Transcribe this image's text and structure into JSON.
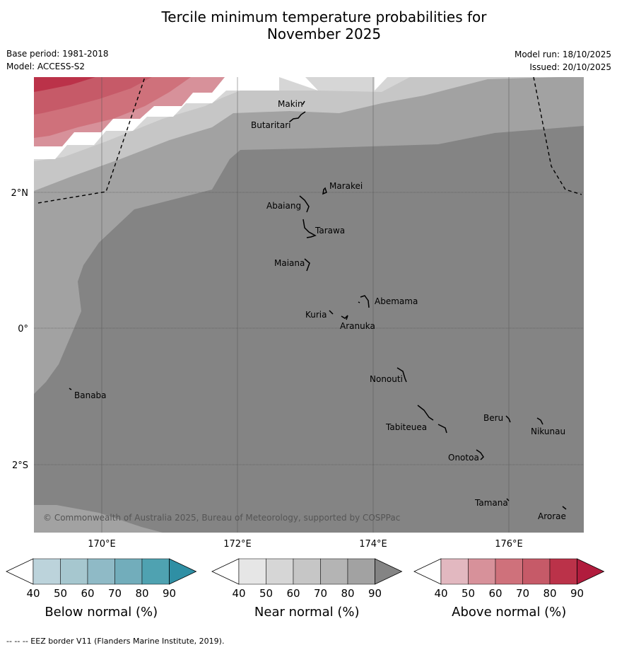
{
  "title_line1": "Tercile minimum temperature probabilities for",
  "title_line2": "November 2025",
  "base_period": "Base period: 1981-2018",
  "model": "Model: ACCESS-S2",
  "model_run": "Model run: 18/10/2025",
  "issued": "Issued: 20/10/2025",
  "copyright": "© Commonwealth of Australia 2025, Bureau of Meteorology, supported by COSPPac",
  "lat_labels": [
    "2°N",
    "0°",
    "2°S"
  ],
  "lon_labels": [
    "170°E",
    "172°E",
    "174°E",
    "176°E"
  ],
  "islands": [
    "Makin",
    "Butaritari",
    "Marakei",
    "Abaiang",
    "Tarawa",
    "Maiana",
    "Abemama",
    "Kuria",
    "Aranuka",
    "Banaba",
    "Nonouti",
    "Tabiteuea",
    "Beru",
    "Nikunau",
    "Onotoa",
    "Tamana",
    "Arorae"
  ],
  "colorbars": [
    {
      "label": "Below normal (%)",
      "ticks": [
        "40",
        "50",
        "60",
        "70",
        "80",
        "90"
      ],
      "colors": [
        "#ffffff",
        "#bcd3db",
        "#a6c7cf",
        "#8fbac6",
        "#72adbb",
        "#4fa2b1",
        "#2f8fa4"
      ]
    },
    {
      "label": "Near normal (%)",
      "ticks": [
        "40",
        "50",
        "60",
        "70",
        "80",
        "90"
      ],
      "colors": [
        "#ffffff",
        "#e6e6e6",
        "#d6d6d6",
        "#c6c6c6",
        "#b4b4b4",
        "#a2a2a2",
        "#848484"
      ]
    },
    {
      "label": "Above normal (%)",
      "ticks": [
        "40",
        "50",
        "60",
        "70",
        "80",
        "90"
      ],
      "colors": [
        "#ffffff",
        "#e2b8c0",
        "#d7919a",
        "#cf717b",
        "#c65a68",
        "#bb3249",
        "#b11c3d"
      ]
    }
  ],
  "footer": "--  --  -- EEZ border V11 (Flanders Marine Institute, 2019)."
}
